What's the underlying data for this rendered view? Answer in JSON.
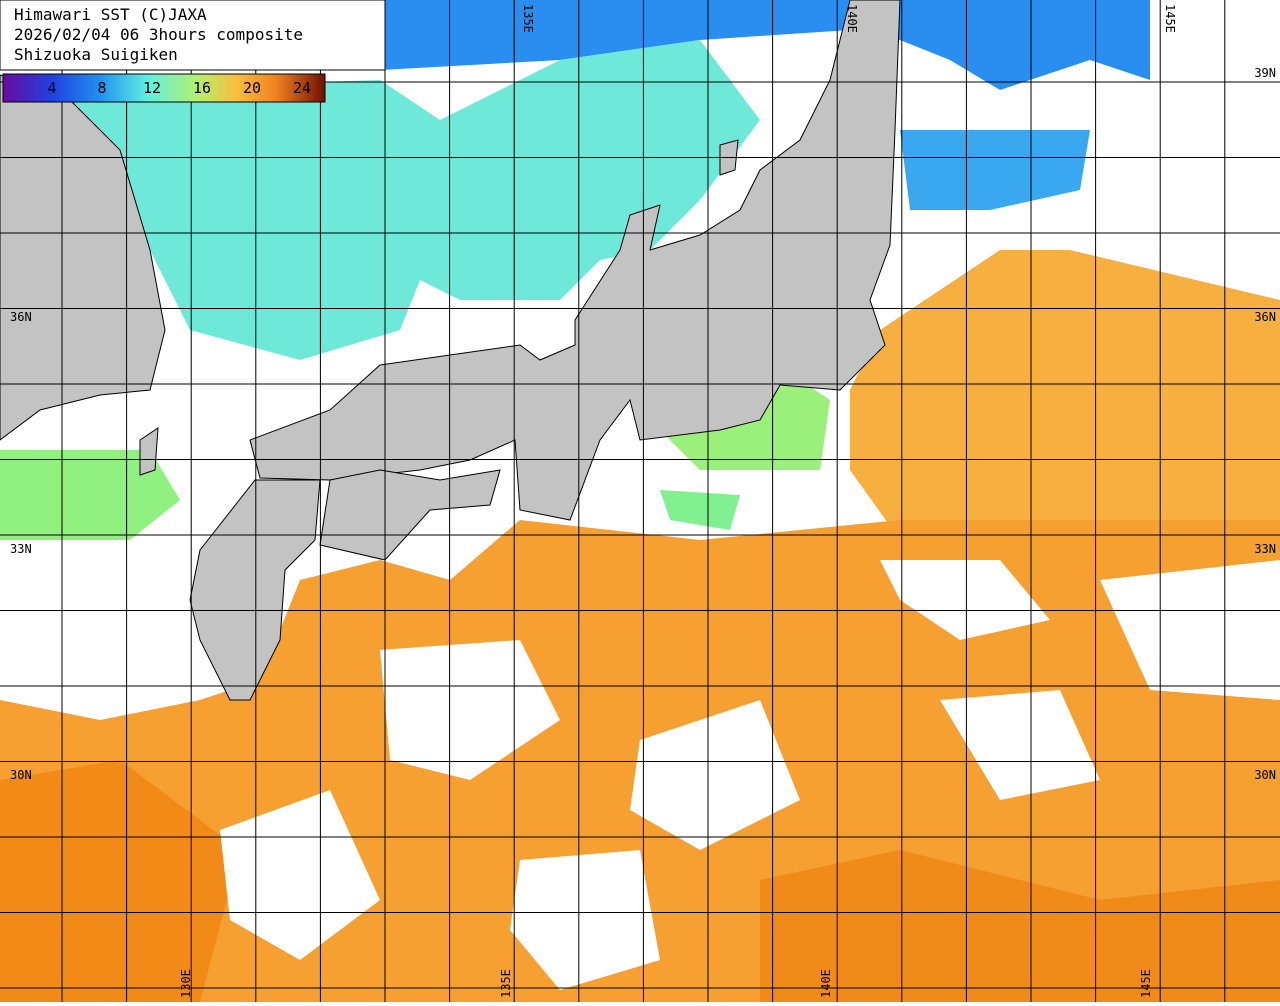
{
  "header": {
    "title": "Himawari SST (C)JAXA",
    "date": "2026/02/04 06 3hours composite",
    "source": "Shizuoka Suigiken"
  },
  "colorbar": {
    "ticks": [
      4,
      8,
      12,
      16,
      20,
      24
    ]
  },
  "lat_labels": [
    "39N",
    "36N",
    "33N",
    "30N"
  ],
  "lon_labels_top": [
    "135E",
    "140E",
    "145E"
  ],
  "lon_labels_bottom": [
    "130E",
    "135E",
    "140E",
    "145E"
  ]
}
